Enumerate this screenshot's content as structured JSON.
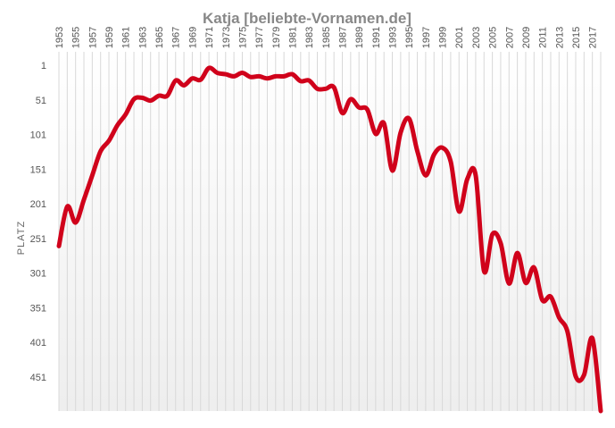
{
  "chart_data": {
    "type": "line",
    "title": "Katja [beliebte-Vornamen.de]",
    "ylabel": "PLATZ",
    "xlabel": "",
    "y_inverted": true,
    "ylim": [
      1,
      500
    ],
    "y_ticks": [
      1,
      51,
      101,
      151,
      201,
      251,
      301,
      351,
      401,
      451
    ],
    "x_tick_labels": [
      "1953",
      "1955",
      "1957",
      "1959",
      "1961",
      "1963",
      "1965",
      "1967",
      "1969",
      "1971",
      "1973",
      "1975",
      "1977",
      "1979",
      "1981",
      "1983",
      "1985",
      "1987",
      "1989",
      "1991",
      "1993",
      "1995",
      "1997",
      "1999",
      "2001",
      "2003",
      "2005",
      "2007",
      "2009",
      "2011",
      "2013",
      "2015",
      "2017"
    ],
    "line_color": "#d0021b",
    "grid": "vertical",
    "series": [
      {
        "name": "",
        "x": [
          1953,
          1954,
          1955,
          1956,
          1957,
          1958,
          1959,
          1960,
          1961,
          1962,
          1963,
          1964,
          1965,
          1966,
          1967,
          1968,
          1969,
          1970,
          1971,
          1972,
          1973,
          1974,
          1975,
          1976,
          1977,
          1978,
          1979,
          1980,
          1981,
          1982,
          1983,
          1984,
          1985,
          1986,
          1987,
          1988,
          1989,
          1990,
          1991,
          1992,
          1993,
          1994,
          1995,
          1996,
          1997,
          1998,
          1999,
          2000,
          2001,
          2002,
          2003,
          2004,
          2005,
          2006,
          2007,
          2008,
          2009,
          2010,
          2011,
          2012,
          2013,
          2014,
          2015,
          2016,
          2017,
          2018
        ],
        "values": [
          262,
          205,
          228,
          195,
          160,
          125,
          110,
          88,
          72,
          50,
          48,
          52,
          45,
          45,
          23,
          30,
          20,
          22,
          5,
          12,
          14,
          17,
          12,
          18,
          17,
          20,
          17,
          17,
          14,
          24,
          23,
          35,
          35,
          33,
          70,
          50,
          62,
          65,
          100,
          85,
          153,
          98,
          78,
          125,
          160,
          130,
          120,
          140,
          212,
          165,
          160,
          298,
          245,
          258,
          316,
          272,
          315,
          293,
          340,
          335,
          365,
          385,
          450,
          448,
          395,
          500
        ]
      }
    ]
  }
}
